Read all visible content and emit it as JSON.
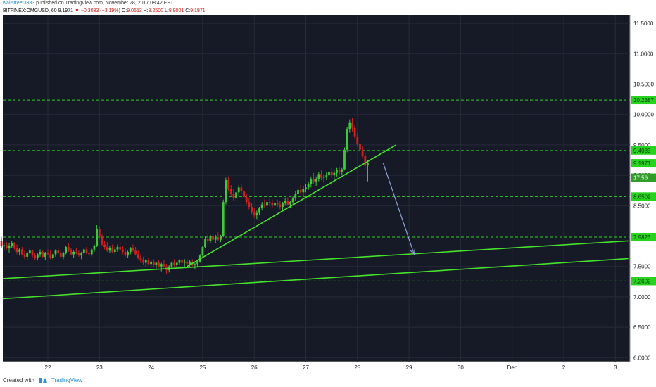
{
  "header": {
    "author": "wallstreet3333",
    "published": "published on TradingView.com, November 28, 2017 08:42 EST",
    "symbol": "BITFINEX:OMGUSD, 60",
    "last": "9.1971",
    "change_arrow": "▼",
    "change": "−0.3033 (−3.19%)",
    "o_label": "O:",
    "o": "9.0653",
    "h_label": "H:",
    "h": "9.2500",
    "l_label": "L:",
    "l": "8.9001",
    "c_label": "C:",
    "c": "9.1971"
  },
  "footer": {
    "created_with": "Created with",
    "brand": "TradingView"
  },
  "colors": {
    "background": "#161a26",
    "grid": "#262b38",
    "up": "#3ec93a",
    "down": "#d3201f",
    "level": "#27d31e",
    "trendline": "#47e22d",
    "projection": "#8ea3d6",
    "axis_text": "#1a1a1a"
  },
  "chart_data": {
    "type": "candlestick",
    "title": "",
    "xlabel": "",
    "ylabel": "",
    "x_ticks": [
      "22",
      "23",
      "24",
      "25",
      "26",
      "27",
      "28",
      "29",
      "30",
      "Dec",
      "2",
      "3"
    ],
    "y_ticks": [
      "11.5000",
      "11.0000",
      "10.5000",
      "10.0000",
      "9.5000",
      "9.0000",
      "8.5000",
      "7.5000",
      "7.0000",
      "6.5000",
      "6.0000"
    ],
    "ylim": [
      5.95,
      11.55
    ],
    "xlim": [
      21.05,
      33.2
    ],
    "grid": true,
    "levels": [
      {
        "value": 10.2387,
        "label": "10.2387"
      },
      {
        "value": 9.4083,
        "label": "9.4083"
      },
      {
        "value": 8.6502,
        "label": "8.6502"
      },
      {
        "value": 7.9823,
        "label": "7.9823"
      },
      {
        "value": 7.2602,
        "label": "7.2602"
      }
    ],
    "price_markers": [
      {
        "value": 9.1971,
        "label": "9.1971"
      },
      {
        "value": 8.96,
        "label": "17:56"
      }
    ],
    "trendlines": [
      {
        "from": [
          21.05,
          7.3
        ],
        "to": [
          33.25,
          7.92
        ]
      },
      {
        "from": [
          21.05,
          6.97
        ],
        "to": [
          33.25,
          7.63
        ]
      },
      {
        "from": [
          24.7,
          7.5
        ],
        "to": [
          28.75,
          9.5
        ]
      }
    ],
    "projection_arrow": {
      "from": [
        28.5,
        9.2
      ],
      "to": [
        29.1,
        7.7
      ]
    },
    "candles_30min": [
      [
        21.05,
        7.7,
        7.95,
        7.65,
        7.92
      ],
      [
        21.1,
        7.92,
        7.98,
        7.8,
        7.83
      ],
      [
        21.15,
        7.83,
        7.9,
        7.76,
        7.85
      ],
      [
        21.2,
        7.85,
        7.9,
        7.78,
        7.8
      ],
      [
        21.25,
        7.8,
        7.88,
        7.72,
        7.84
      ],
      [
        21.3,
        7.84,
        7.92,
        7.8,
        7.88
      ],
      [
        21.35,
        7.88,
        7.9,
        7.78,
        7.8
      ],
      [
        21.4,
        7.8,
        7.86,
        7.7,
        7.74
      ],
      [
        21.45,
        7.74,
        7.8,
        7.68,
        7.78
      ],
      [
        21.5,
        7.78,
        7.82,
        7.68,
        7.7
      ],
      [
        21.55,
        7.7,
        7.76,
        7.62,
        7.66
      ],
      [
        21.6,
        7.66,
        7.74,
        7.6,
        7.72
      ],
      [
        21.65,
        7.72,
        7.8,
        7.68,
        7.76
      ],
      [
        21.7,
        7.76,
        7.78,
        7.64,
        7.68
      ],
      [
        21.75,
        7.68,
        7.72,
        7.6,
        7.64
      ],
      [
        21.8,
        7.64,
        7.72,
        7.6,
        7.7
      ],
      [
        21.85,
        7.7,
        7.78,
        7.66,
        7.74
      ],
      [
        21.9,
        7.74,
        7.76,
        7.64,
        7.66
      ],
      [
        21.95,
        7.66,
        7.74,
        7.6,
        7.72
      ],
      [
        22.0,
        7.72,
        7.78,
        7.68,
        7.7
      ],
      [
        22.05,
        7.7,
        7.76,
        7.62,
        7.64
      ],
      [
        22.1,
        7.64,
        7.72,
        7.6,
        7.7
      ],
      [
        22.15,
        7.7,
        7.78,
        7.66,
        7.76
      ],
      [
        22.2,
        7.76,
        7.8,
        7.7,
        7.72
      ],
      [
        22.25,
        7.72,
        7.76,
        7.64,
        7.66
      ],
      [
        22.3,
        7.66,
        7.74,
        7.62,
        7.72
      ],
      [
        22.35,
        7.72,
        7.84,
        7.7,
        7.82
      ],
      [
        22.4,
        7.82,
        7.88,
        7.74,
        7.76
      ],
      [
        22.45,
        7.76,
        7.8,
        7.68,
        7.7
      ],
      [
        22.5,
        7.7,
        7.76,
        7.64,
        7.74
      ],
      [
        22.55,
        7.74,
        7.8,
        7.7,
        7.72
      ],
      [
        22.6,
        7.72,
        7.76,
        7.66,
        7.68
      ],
      [
        22.65,
        7.68,
        7.74,
        7.62,
        7.72
      ],
      [
        22.7,
        7.72,
        7.8,
        7.7,
        7.78
      ],
      [
        22.75,
        7.78,
        7.82,
        7.7,
        7.72
      ],
      [
        22.8,
        7.72,
        7.76,
        7.66,
        7.7
      ],
      [
        22.85,
        7.7,
        7.8,
        7.66,
        7.78
      ],
      [
        22.9,
        7.78,
        7.86,
        7.74,
        7.84
      ],
      [
        22.95,
        7.84,
        8.18,
        7.82,
        8.12
      ],
      [
        23.0,
        8.12,
        8.16,
        7.96,
        7.98
      ],
      [
        23.05,
        7.98,
        8.04,
        7.84,
        7.86
      ],
      [
        23.1,
        7.86,
        7.92,
        7.78,
        7.82
      ],
      [
        23.15,
        7.82,
        7.9,
        7.74,
        7.76
      ],
      [
        23.2,
        7.76,
        7.84,
        7.72,
        7.8
      ],
      [
        23.25,
        7.8,
        7.86,
        7.72,
        7.74
      ],
      [
        23.3,
        7.74,
        7.82,
        7.7,
        7.78
      ],
      [
        23.35,
        7.78,
        7.86,
        7.74,
        7.82
      ],
      [
        23.4,
        7.82,
        7.9,
        7.76,
        7.78
      ],
      [
        23.45,
        7.78,
        7.84,
        7.7,
        7.74
      ],
      [
        23.5,
        7.74,
        7.8,
        7.66,
        7.68
      ],
      [
        23.55,
        7.68,
        7.76,
        7.64,
        7.74
      ],
      [
        23.6,
        7.74,
        7.82,
        7.7,
        7.8
      ],
      [
        23.65,
        7.8,
        7.86,
        7.74,
        7.76
      ],
      [
        23.7,
        7.76,
        7.82,
        7.68,
        7.7
      ],
      [
        23.75,
        7.7,
        7.76,
        7.62,
        7.64
      ],
      [
        23.8,
        7.64,
        7.7,
        7.56,
        7.6
      ],
      [
        23.85,
        7.6,
        7.66,
        7.52,
        7.56
      ],
      [
        23.9,
        7.56,
        7.62,
        7.5,
        7.6
      ],
      [
        23.95,
        7.6,
        7.64,
        7.52,
        7.54
      ],
      [
        24.0,
        7.54,
        7.6,
        7.48,
        7.58
      ],
      [
        24.05,
        7.58,
        7.62,
        7.5,
        7.52
      ],
      [
        24.1,
        7.52,
        7.58,
        7.46,
        7.56
      ],
      [
        24.15,
        7.56,
        7.6,
        7.48,
        7.5
      ],
      [
        24.2,
        7.5,
        7.56,
        7.42,
        7.54
      ],
      [
        24.25,
        7.54,
        7.6,
        7.48,
        7.5
      ],
      [
        24.3,
        7.5,
        7.54,
        7.38,
        7.44
      ],
      [
        24.35,
        7.44,
        7.52,
        7.4,
        7.5
      ],
      [
        24.4,
        7.5,
        7.58,
        7.46,
        7.56
      ],
      [
        24.45,
        7.56,
        7.62,
        7.5,
        7.52
      ],
      [
        24.5,
        7.52,
        7.58,
        7.46,
        7.56
      ],
      [
        24.55,
        7.56,
        7.62,
        7.52,
        7.6
      ],
      [
        24.6,
        7.6,
        7.64,
        7.54,
        7.56
      ],
      [
        24.65,
        7.56,
        7.62,
        7.5,
        7.58
      ],
      [
        24.7,
        7.58,
        7.62,
        7.52,
        7.54
      ],
      [
        24.75,
        7.54,
        7.6,
        7.48,
        7.58
      ],
      [
        24.8,
        7.58,
        7.62,
        7.5,
        7.52
      ],
      [
        24.85,
        7.52,
        7.56,
        7.46,
        7.54
      ],
      [
        24.9,
        7.54,
        7.6,
        7.5,
        7.58
      ],
      [
        24.95,
        7.58,
        7.7,
        7.56,
        7.68
      ],
      [
        25.0,
        7.68,
        7.84,
        7.66,
        7.82
      ],
      [
        25.05,
        7.82,
        8.0,
        7.8,
        7.96
      ],
      [
        25.1,
        7.96,
        8.04,
        7.88,
        7.92
      ],
      [
        25.15,
        7.92,
        8.02,
        7.88,
        8.0
      ],
      [
        25.2,
        8.0,
        8.06,
        7.9,
        7.94
      ],
      [
        25.25,
        7.94,
        8.02,
        7.88,
        7.98
      ],
      [
        25.3,
        7.98,
        8.06,
        7.92,
        7.94
      ],
      [
        25.35,
        7.94,
        8.02,
        7.9,
        8.0
      ],
      [
        25.4,
        8.0,
        8.6,
        7.98,
        8.56
      ],
      [
        25.45,
        8.56,
        8.96,
        8.52,
        8.92
      ],
      [
        25.5,
        8.92,
        8.98,
        8.74,
        8.78
      ],
      [
        25.55,
        8.78,
        8.84,
        8.66,
        8.7
      ],
      [
        25.6,
        8.7,
        8.78,
        8.58,
        8.62
      ],
      [
        25.65,
        8.62,
        8.76,
        8.58,
        8.72
      ],
      [
        25.7,
        8.72,
        8.84,
        8.66,
        8.8
      ],
      [
        25.75,
        8.8,
        8.86,
        8.7,
        8.74
      ],
      [
        25.8,
        8.74,
        8.8,
        8.6,
        8.64
      ],
      [
        25.85,
        8.64,
        8.7,
        8.52,
        8.56
      ],
      [
        25.9,
        8.56,
        8.62,
        8.44,
        8.48
      ],
      [
        25.95,
        8.48,
        8.54,
        8.36,
        8.4
      ],
      [
        26.0,
        8.4,
        8.46,
        8.3,
        8.34
      ],
      [
        26.05,
        8.34,
        8.42,
        8.28,
        8.38
      ],
      [
        26.1,
        8.38,
        8.48,
        8.34,
        8.46
      ],
      [
        26.15,
        8.46,
        8.56,
        8.42,
        8.52
      ],
      [
        26.2,
        8.52,
        8.6,
        8.46,
        8.5
      ],
      [
        26.25,
        8.5,
        8.58,
        8.44,
        8.56
      ],
      [
        26.3,
        8.56,
        8.62,
        8.5,
        8.54
      ],
      [
        26.35,
        8.54,
        8.6,
        8.46,
        8.5
      ],
      [
        26.4,
        8.5,
        8.56,
        8.42,
        8.54
      ],
      [
        26.45,
        8.54,
        8.6,
        8.48,
        8.52
      ],
      [
        26.5,
        8.52,
        8.58,
        8.44,
        8.48
      ],
      [
        26.55,
        8.48,
        8.56,
        8.42,
        8.54
      ],
      [
        26.6,
        8.54,
        8.62,
        8.5,
        8.58
      ],
      [
        26.65,
        8.58,
        8.64,
        8.5,
        8.52
      ],
      [
        26.7,
        8.52,
        8.58,
        8.46,
        8.56
      ],
      [
        26.75,
        8.56,
        8.66,
        8.52,
        8.62
      ],
      [
        26.8,
        8.62,
        8.74,
        8.58,
        8.7
      ],
      [
        26.85,
        8.7,
        8.8,
        8.64,
        8.76
      ],
      [
        26.9,
        8.76,
        8.84,
        8.68,
        8.72
      ],
      [
        26.95,
        8.72,
        8.82,
        8.66,
        8.78
      ],
      [
        27.0,
        8.78,
        8.86,
        8.72,
        8.8
      ],
      [
        27.05,
        8.8,
        8.9,
        8.76,
        8.86
      ],
      [
        27.1,
        8.86,
        8.98,
        8.8,
        8.94
      ],
      [
        27.15,
        8.94,
        9.04,
        8.86,
        8.9
      ],
      [
        27.2,
        8.9,
        8.98,
        8.82,
        8.94
      ],
      [
        27.25,
        8.94,
        9.06,
        8.9,
        9.02
      ],
      [
        27.3,
        9.02,
        9.08,
        8.92,
        8.96
      ],
      [
        27.35,
        8.96,
        9.02,
        8.88,
        8.98
      ],
      [
        27.4,
        8.98,
        9.06,
        8.92,
        9.0
      ],
      [
        27.45,
        9.0,
        9.1,
        8.94,
        9.06
      ],
      [
        27.5,
        9.06,
        9.12,
        8.96,
        9.0
      ],
      [
        27.55,
        9.0,
        9.08,
        8.92,
        9.04
      ],
      [
        27.6,
        9.04,
        9.12,
        8.98,
        9.08
      ],
      [
        27.65,
        9.08,
        9.14,
        9.0,
        9.06
      ],
      [
        27.7,
        9.06,
        9.12,
        9.0,
        9.1
      ],
      [
        27.75,
        9.1,
        9.46,
        9.08,
        9.42
      ],
      [
        27.8,
        9.42,
        9.8,
        9.38,
        9.76
      ],
      [
        27.85,
        9.76,
        9.92,
        9.7,
        9.86
      ],
      [
        27.9,
        9.86,
        9.94,
        9.72,
        9.78
      ],
      [
        27.95,
        9.78,
        9.84,
        9.6,
        9.64
      ],
      [
        28.0,
        9.64,
        9.7,
        9.48,
        9.52
      ],
      [
        28.05,
        9.52,
        9.58,
        9.38,
        9.42
      ],
      [
        28.1,
        9.42,
        9.48,
        9.28,
        9.32
      ],
      [
        28.15,
        9.32,
        9.38,
        9.1,
        9.16
      ],
      [
        28.2,
        9.16,
        9.25,
        8.9,
        9.2
      ]
    ]
  }
}
